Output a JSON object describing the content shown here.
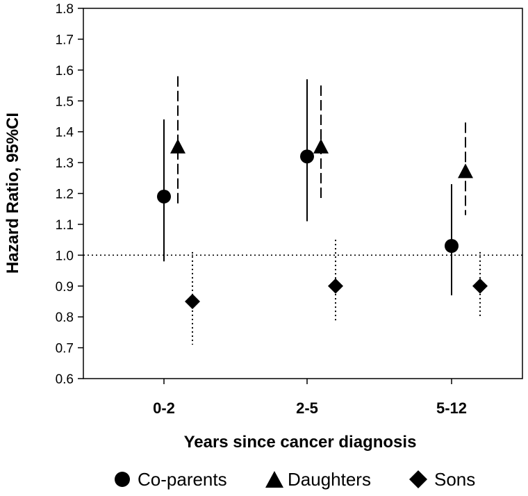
{
  "chart_data": {
    "type": "scatter",
    "title": "",
    "xlabel": "Years since cancer diagnosis",
    "ylabel": "Hazard Ratio, 95%CI",
    "ylim": [
      0.6,
      1.8
    ],
    "yticks": [
      "0.6",
      "0.7",
      "0.8",
      "0.9",
      "1.0",
      "1.1",
      "1.2",
      "1.3",
      "1.4",
      "1.5",
      "1.6",
      "1.7",
      "1.8"
    ],
    "categories": [
      "0-2",
      "2-5",
      "5-12"
    ],
    "reference_line": 1.0,
    "grid": false,
    "legend_position": "bottom",
    "series": [
      {
        "name": "Co-parents",
        "marker": "circle",
        "line_style": "solid",
        "values": [
          1.19,
          1.32,
          1.03
        ],
        "lower": [
          0.98,
          1.11,
          0.87
        ],
        "upper": [
          1.44,
          1.57,
          1.23
        ]
      },
      {
        "name": "Daughters",
        "marker": "triangle",
        "line_style": "dashed",
        "values": [
          1.35,
          1.35,
          1.27
        ],
        "lower": [
          1.16,
          1.18,
          1.13
        ],
        "upper": [
          1.58,
          1.55,
          1.43
        ]
      },
      {
        "name": "Sons",
        "marker": "diamond",
        "line_style": "dotted",
        "values": [
          0.85,
          0.9,
          0.9
        ],
        "lower": [
          0.71,
          0.78,
          0.8
        ],
        "upper": [
          1.01,
          1.05,
          1.01
        ]
      }
    ]
  },
  "colors": {
    "ink": "#000000",
    "background": "#ffffff"
  }
}
